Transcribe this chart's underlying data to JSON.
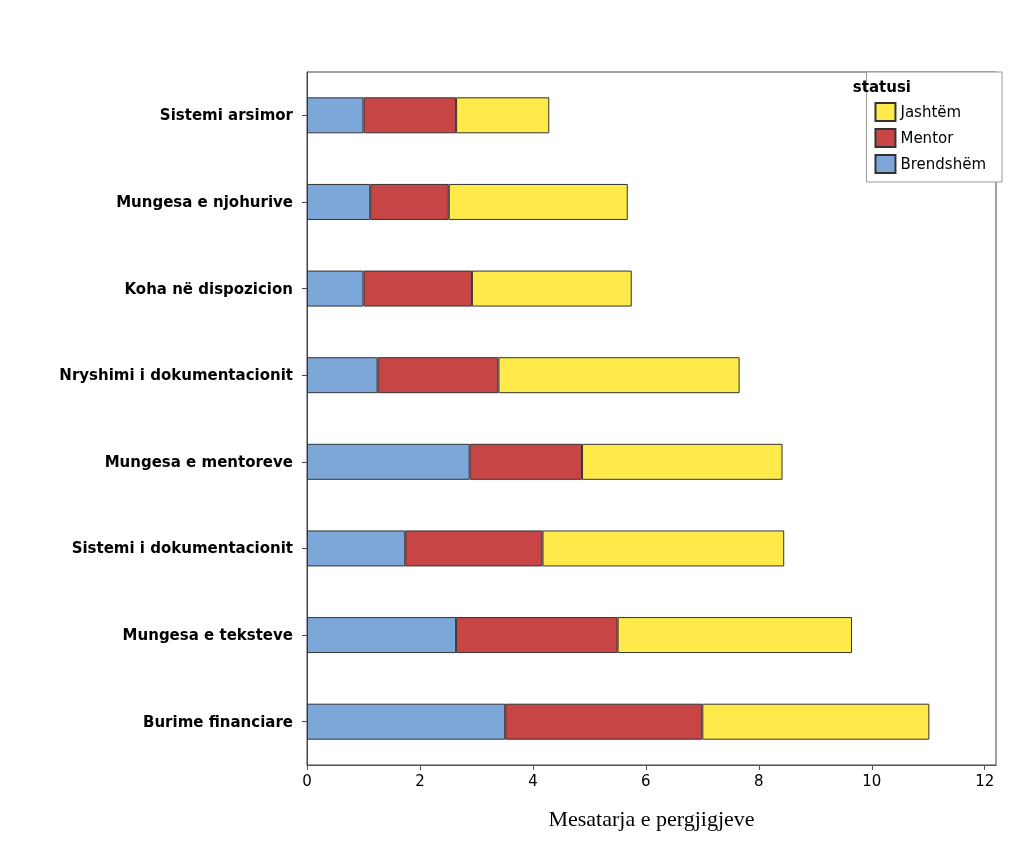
{
  "chart_data": {
    "type": "bar",
    "orientation": "horizontal",
    "stacked": true,
    "categories": [
      "Sistemi arsimor",
      "Mungesa e njohurive",
      "Koha në dispozicion",
      "Nryshimi i dokumentacionit",
      "Mungesa e mentoreve",
      "Sistemi i dokumentacionit",
      "Mungesa e teksteve",
      "Burime financiare"
    ],
    "series": [
      {
        "name": "Brendshëm",
        "color": "#7da7d9",
        "values": [
          1.0,
          1.12,
          1.0,
          1.25,
          2.88,
          1.74,
          2.64,
          3.51
        ]
      },
      {
        "name": "Mentor",
        "color": "#c84545",
        "values": [
          1.64,
          1.39,
          1.92,
          2.14,
          1.99,
          2.43,
          2.86,
          3.49
        ]
      },
      {
        "name": "Jashtëm",
        "color": "#ffea4a",
        "values": [
          1.65,
          3.17,
          2.83,
          4.27,
          3.55,
          4.28,
          4.15,
          4.02
        ]
      }
    ],
    "xlabel": "Mesatarja e pergjigjeve",
    "legend_title": "statusi",
    "legend": "top right",
    "xlim": [
      0,
      12.2
    ],
    "xticks": [
      0,
      2,
      4,
      6,
      8,
      10,
      12
    ],
    "grid": false
  }
}
